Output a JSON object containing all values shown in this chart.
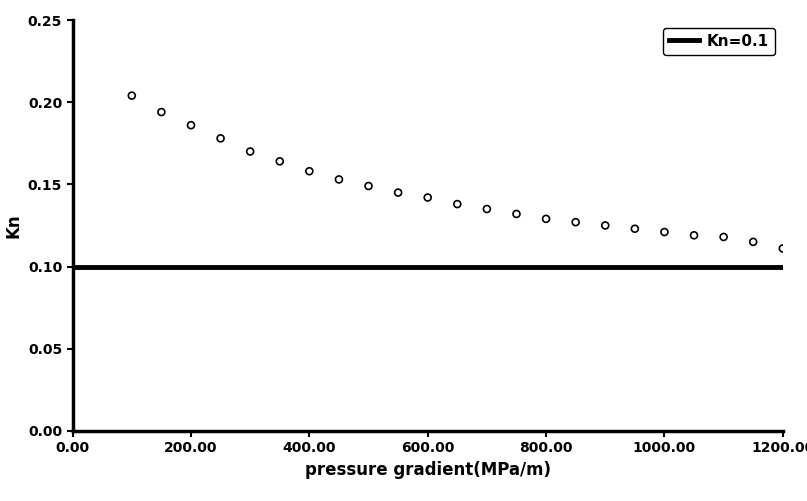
{
  "scatter_x": [
    100,
    150,
    200,
    250,
    300,
    350,
    400,
    450,
    500,
    550,
    600,
    650,
    700,
    750,
    800,
    850,
    900,
    950,
    1000,
    1050,
    1100,
    1150,
    1200
  ],
  "scatter_y": [
    0.204,
    0.194,
    0.186,
    0.178,
    0.17,
    0.164,
    0.158,
    0.153,
    0.149,
    0.145,
    0.142,
    0.138,
    0.135,
    0.132,
    0.129,
    0.127,
    0.125,
    0.123,
    0.121,
    0.119,
    0.118,
    0.115,
    0.111
  ],
  "hline_y": 0.1,
  "xlabel": "pressure gradient(MPa/m)",
  "ylabel": "Kn",
  "legend_label": "Kn=0.1",
  "xlim": [
    0,
    1200
  ],
  "ylim": [
    0,
    0.25
  ],
  "xticks": [
    0,
    200,
    400,
    600,
    800,
    1000,
    1200
  ],
  "yticks": [
    0.0,
    0.05,
    0.1,
    0.15,
    0.2,
    0.25
  ],
  "line_color": "#000000",
  "scatter_color": "#000000",
  "background_color": "#ffffff",
  "linewidth": 3.5,
  "scatter_size": 25,
  "scatter_lw": 1.2,
  "xlabel_fontsize": 12,
  "ylabel_fontsize": 12,
  "tick_fontsize": 10,
  "legend_fontsize": 11
}
